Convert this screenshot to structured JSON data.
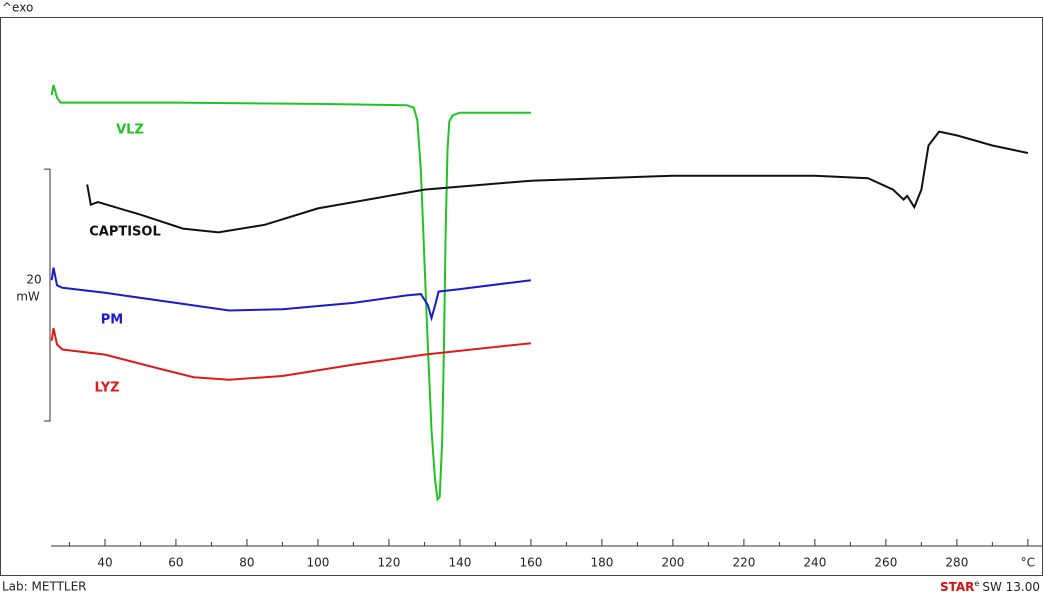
{
  "chart_data": {
    "type": "line",
    "y_label": "^exo",
    "footer_left": "Lab: METTLER",
    "software": {
      "brand": "STAR",
      "sup": "e",
      "version": "SW 13.00"
    },
    "scale_bar": {
      "value": 20,
      "label": "mW"
    },
    "xlim": [
      24.8,
      300.6
    ],
    "ylim": [
      0,
      42
    ],
    "xticks": [
      40,
      60,
      80,
      100,
      120,
      140,
      160,
      180,
      200,
      220,
      240,
      260,
      280,
      {
        "value": 300,
        "label": "°C"
      }
    ],
    "xminor_ticks": [
      30,
      50,
      70,
      90,
      110,
      130,
      150,
      170,
      190,
      210,
      230,
      250,
      270,
      290
    ],
    "series": [
      {
        "name": "VLZ",
        "color": "#22c322",
        "x": [
          25,
          25.5,
          26.5,
          27.5,
          60,
          100,
          125,
          127,
          128,
          129,
          130,
          131,
          132,
          133,
          133.7,
          134.3,
          135,
          135.5,
          136,
          136.5,
          137,
          138,
          140,
          160
        ],
        "values": [
          35.8,
          36.6,
          35.6,
          35.2,
          35.2,
          35.1,
          35.0,
          34.8,
          33.8,
          29.8,
          22.7,
          15.6,
          9.2,
          5.2,
          3.7,
          3.9,
          8.4,
          15.6,
          25.1,
          31.4,
          33.7,
          34.2,
          34.4,
          34.4
        ]
      },
      {
        "name": "CAPTISOL",
        "color": "#111111",
        "x": [
          35,
          36,
          38,
          50,
          62,
          72,
          85,
          100,
          130,
          160,
          200,
          240,
          255,
          262,
          265,
          266,
          268,
          270,
          272,
          275,
          280,
          290,
          300
        ],
        "values": [
          28.7,
          27.1,
          27.3,
          26.3,
          25.2,
          24.9,
          25.5,
          26.8,
          28.3,
          29.0,
          29.4,
          29.4,
          29.2,
          28.3,
          27.5,
          27.8,
          26.9,
          28.3,
          31.8,
          32.9,
          32.6,
          31.8,
          31.2
        ]
      },
      {
        "name": "PM",
        "color": "#1a1ad0",
        "x": [
          25,
          25.5,
          26.5,
          28,
          40,
          60,
          75,
          90,
          110,
          125,
          129,
          131,
          132,
          133,
          134,
          140,
          160
        ],
        "values": [
          21.1,
          22.1,
          20.7,
          20.5,
          20.1,
          19.3,
          18.7,
          18.8,
          19.3,
          19.9,
          20.0,
          19.1,
          18.1,
          19.1,
          20.2,
          20.4,
          21.1
        ]
      },
      {
        "name": "LYZ",
        "color": "#e01a1a",
        "x": [
          25,
          25.5,
          26.5,
          28,
          40,
          55,
          65,
          75,
          90,
          110,
          130,
          160
        ],
        "values": [
          16.3,
          17.3,
          16.0,
          15.6,
          15.2,
          14.1,
          13.4,
          13.2,
          13.5,
          14.4,
          15.2,
          16.1
        ]
      }
    ]
  }
}
